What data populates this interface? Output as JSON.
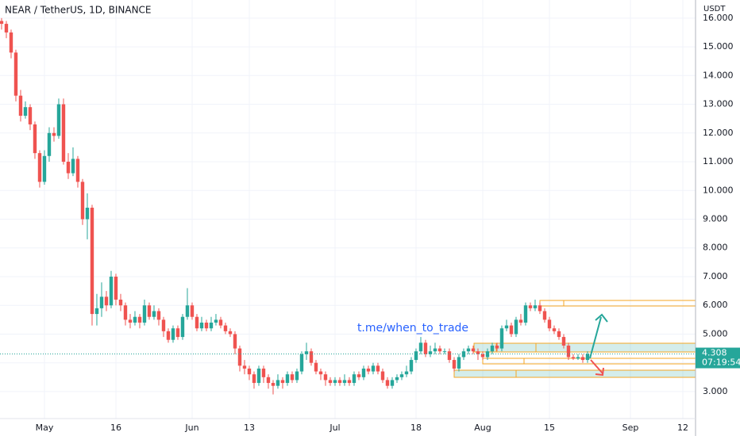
{
  "chart_data": {
    "type": "candlestick",
    "title": "NEAR / TetherUS, 1D, BINANCE",
    "y_axis_label": "USDT",
    "annotation": "t.me/when_to_trade",
    "countdown": "07:19:54",
    "up_color": "#26a69a",
    "down_color": "#ef5350",
    "grid": true,
    "xlim": [
      -0.33,
      145.67
    ],
    "xticks": [
      {
        "value": 9,
        "label": "May"
      },
      {
        "value": 24,
        "label": "16"
      },
      {
        "value": 40,
        "label": "Jun"
      },
      {
        "value": 52,
        "label": "13"
      },
      {
        "value": 70,
        "label": "Jul"
      },
      {
        "value": 87,
        "label": "18"
      },
      {
        "value": 101,
        "label": "Aug"
      },
      {
        "value": 115,
        "label": "15"
      },
      {
        "value": 132,
        "label": "Sep"
      },
      {
        "value": 143,
        "label": "12"
      }
    ],
    "ylim": [
      2.06,
      16.63
    ],
    "yticks": [
      {
        "value": 3,
        "label": "3.000"
      },
      {
        "value": 4,
        "label": "4.000"
      },
      {
        "value": 5,
        "label": "5.000"
      },
      {
        "value": 6,
        "label": "6.000"
      },
      {
        "value": 7,
        "label": "7.000"
      },
      {
        "value": 8,
        "label": "8.000"
      },
      {
        "value": 9,
        "label": "9.000"
      },
      {
        "value": 10,
        "label": "10.000"
      },
      {
        "value": 11,
        "label": "11.000"
      },
      {
        "value": 12,
        "label": "12.000"
      },
      {
        "value": 13,
        "label": "13.000"
      },
      {
        "value": 14,
        "label": "14.000"
      },
      {
        "value": 15,
        "label": "15.000"
      },
      {
        "value": 16,
        "label": "16.000"
      }
    ],
    "open": [
      15.9,
      15.8,
      15.5,
      14.8,
      13.3,
      12.6,
      12.9,
      12.3,
      11.3,
      10.3,
      11.2,
      12.0,
      11.9,
      13.0,
      11.0,
      10.6,
      11.1,
      10.3,
      9.0,
      9.4,
      5.7,
      5.9,
      6.3,
      6.0,
      7.0,
      6.2,
      6.0,
      5.5,
      5.4,
      5.6,
      5.4,
      6.0,
      5.6,
      5.8,
      5.5,
      5.1,
      4.8,
      5.2,
      4.9,
      5.6,
      6.0,
      5.6,
      5.2,
      5.4,
      5.2,
      5.4,
      5.5,
      5.3,
      5.1,
      5.0,
      4.5,
      3.9,
      3.8,
      3.6,
      3.3,
      3.8,
      3.5,
      3.3,
      3.2,
      3.4,
      3.3,
      3.6,
      3.4,
      3.7,
      4.3,
      4.4,
      4.0,
      3.7,
      3.6,
      3.4,
      3.3,
      3.4,
      3.3,
      3.4,
      3.3,
      3.6,
      3.5,
      3.8,
      3.7,
      3.9,
      3.7,
      3.4,
      3.2,
      3.4,
      3.5,
      3.6,
      3.7,
      4.1,
      4.4,
      4.7,
      4.3,
      4.4,
      4.5,
      4.4,
      4.4,
      4.1,
      3.8,
      4.2,
      4.4,
      4.5,
      4.4,
      4.3,
      4.2,
      4.4,
      4.6,
      4.5,
      5.2,
      5.3,
      5.0,
      5.5,
      5.4,
      6.0,
      5.9,
      6.0,
      5.8,
      5.5,
      5.2,
      5.1,
      4.9,
      4.6,
      4.2,
      4.15,
      4.2,
      4.1
    ],
    "high": [
      16.0,
      15.9,
      15.6,
      14.9,
      13.5,
      13.1,
      13.0,
      12.4,
      11.4,
      11.4,
      12.2,
      12.2,
      13.2,
      13.2,
      11.3,
      11.5,
      11.2,
      10.4,
      9.9,
      9.5,
      6.4,
      6.8,
      6.5,
      7.2,
      7.1,
      6.4,
      6.1,
      5.7,
      5.8,
      5.7,
      6.2,
      6.1,
      6.0,
      5.9,
      5.6,
      5.2,
      5.3,
      5.3,
      5.7,
      6.6,
      6.1,
      5.7,
      5.6,
      5.5,
      5.6,
      5.7,
      5.6,
      5.4,
      5.2,
      5.1,
      4.6,
      4.1,
      3.9,
      3.7,
      3.9,
      3.9,
      3.6,
      3.4,
      3.6,
      3.5,
      3.7,
      3.7,
      3.8,
      4.4,
      4.7,
      4.5,
      4.1,
      3.8,
      3.7,
      3.5,
      3.5,
      3.5,
      3.6,
      3.5,
      3.7,
      3.7,
      3.9,
      3.9,
      4.0,
      4.0,
      3.8,
      3.5,
      3.5,
      3.6,
      3.7,
      3.9,
      4.2,
      4.5,
      4.9,
      4.8,
      4.6,
      4.7,
      4.6,
      4.5,
      4.5,
      4.2,
      4.3,
      4.5,
      4.6,
      4.6,
      4.5,
      4.4,
      4.5,
      4.7,
      4.7,
      5.3,
      5.5,
      5.4,
      5.6,
      5.7,
      6.1,
      6.1,
      6.2,
      6.1,
      5.9,
      5.6,
      5.3,
      5.2,
      5.0,
      4.7,
      4.3,
      4.3,
      4.3,
      4.4
    ],
    "low": [
      15.6,
      15.3,
      14.6,
      13.1,
      12.4,
      12.5,
      12.1,
      11.1,
      10.1,
      10.2,
      11.0,
      11.7,
      11.8,
      10.9,
      10.4,
      10.5,
      10.1,
      8.8,
      8.3,
      5.3,
      5.3,
      5.6,
      5.8,
      5.9,
      6.0,
      5.8,
      5.3,
      5.2,
      5.3,
      5.2,
      5.3,
      5.5,
      5.5,
      5.3,
      4.9,
      4.7,
      4.7,
      4.8,
      4.8,
      5.5,
      5.5,
      5.1,
      5.1,
      5.1,
      5.1,
      5.3,
      5.2,
      5.0,
      4.9,
      4.3,
      3.7,
      3.6,
      3.4,
      3.1,
      3.2,
      3.3,
      3.1,
      2.9,
      3.1,
      3.1,
      3.2,
      3.3,
      3.3,
      3.6,
      4.1,
      3.9,
      3.6,
      3.4,
      3.2,
      3.2,
      3.2,
      3.2,
      3.2,
      3.2,
      3.2,
      3.4,
      3.4,
      3.6,
      3.6,
      3.6,
      3.3,
      3.1,
      3.1,
      3.3,
      3.4,
      3.5,
      3.6,
      4.0,
      4.3,
      4.2,
      4.2,
      4.3,
      4.3,
      4.3,
      4.0,
      3.7,
      3.7,
      4.1,
      4.3,
      4.3,
      4.1,
      4.1,
      4.1,
      4.3,
      4.4,
      4.4,
      5.1,
      4.9,
      4.9,
      5.3,
      5.3,
      5.8,
      5.8,
      5.7,
      5.4,
      5.1,
      5.0,
      4.8,
      4.5,
      4.1,
      4.1,
      4.1,
      4.0,
      4.0
    ],
    "close": [
      15.8,
      15.5,
      14.8,
      13.3,
      12.6,
      12.9,
      12.3,
      11.3,
      10.3,
      11.2,
      12.0,
      11.9,
      13.0,
      11.0,
      10.6,
      11.1,
      10.3,
      9.0,
      9.4,
      5.7,
      5.9,
      6.3,
      6.0,
      7.0,
      6.2,
      6.0,
      5.5,
      5.4,
      5.6,
      5.4,
      6.0,
      5.6,
      5.8,
      5.5,
      5.1,
      4.8,
      5.2,
      4.9,
      5.6,
      6.0,
      5.6,
      5.2,
      5.4,
      5.2,
      5.4,
      5.5,
      5.3,
      5.1,
      5.0,
      4.5,
      3.9,
      3.8,
      3.6,
      3.3,
      3.8,
      3.5,
      3.3,
      3.2,
      3.4,
      3.3,
      3.6,
      3.4,
      3.7,
      4.3,
      4.4,
      4.0,
      3.7,
      3.6,
      3.4,
      3.3,
      3.4,
      3.3,
      3.4,
      3.3,
      3.6,
      3.5,
      3.8,
      3.7,
      3.9,
      3.7,
      3.4,
      3.2,
      3.4,
      3.5,
      3.6,
      3.7,
      4.1,
      4.4,
      4.7,
      4.3,
      4.4,
      4.5,
      4.4,
      4.4,
      4.1,
      3.8,
      4.2,
      4.4,
      4.5,
      4.4,
      4.3,
      4.2,
      4.4,
      4.6,
      4.5,
      5.2,
      5.3,
      5.0,
      5.5,
      5.4,
      6.0,
      5.9,
      6.0,
      5.8,
      5.5,
      5.2,
      5.1,
      4.9,
      4.6,
      4.2,
      4.15,
      4.2,
      4.1,
      4.308
    ]
  }
}
